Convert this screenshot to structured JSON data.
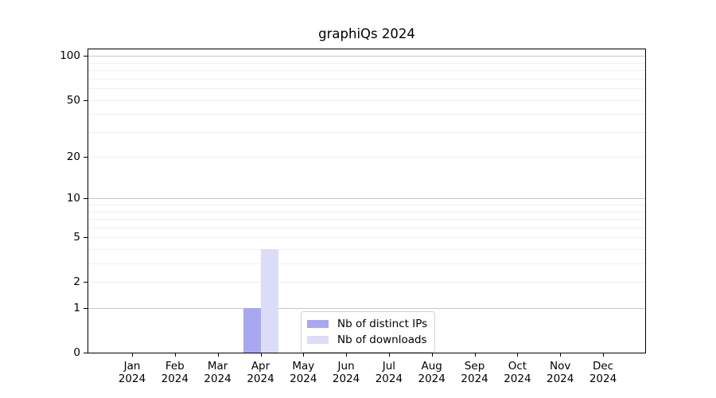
{
  "chart_data": {
    "type": "bar",
    "title": "graphiQs 2024",
    "categories": [
      "Jan 2024",
      "Feb 2024",
      "Mar 2024",
      "Apr 2024",
      "May 2024",
      "Jun 2024",
      "Jul 2024",
      "Aug 2024",
      "Sep 2024",
      "Oct 2024",
      "Nov 2024",
      "Dec 2024"
    ],
    "series": [
      {
        "name": "Nb of distinct IPs",
        "color": "#a8a8f2",
        "values": [
          0,
          0,
          0,
          1,
          0,
          0,
          0,
          0,
          0,
          0,
          0,
          0
        ]
      },
      {
        "name": "Nb of downloads",
        "color": "#dcdcf9",
        "values": [
          0,
          0,
          0,
          4,
          0,
          0,
          0,
          0,
          0,
          0,
          0,
          0
        ]
      }
    ],
    "y_axis": {
      "scale": "log10(1+x)",
      "ylim": [
        0,
        112
      ],
      "ticks": [
        {
          "value": 0,
          "label": "0"
        },
        {
          "value": 1,
          "label": "1"
        },
        {
          "value": 2,
          "label": "2"
        },
        {
          "value": 5,
          "label": "5"
        },
        {
          "value": 10,
          "label": "10"
        },
        {
          "value": 20,
          "label": "20"
        },
        {
          "value": 50,
          "label": "50"
        },
        {
          "value": 100,
          "label": "100"
        }
      ],
      "major_grid_values": [
        1,
        10,
        100
      ],
      "minor_grid_values": [
        2,
        3,
        4,
        5,
        6,
        7,
        8,
        9,
        20,
        30,
        40,
        50,
        60,
        70,
        80,
        90
      ]
    },
    "grid": "horizontal",
    "legend": {
      "position": "inside-bottom-center"
    },
    "colors": {
      "grid_major": "#c6c6c6",
      "grid_minor": "#efefef",
      "axis": "#000000",
      "background": "#ffffff",
      "text": "#000000"
    }
  }
}
